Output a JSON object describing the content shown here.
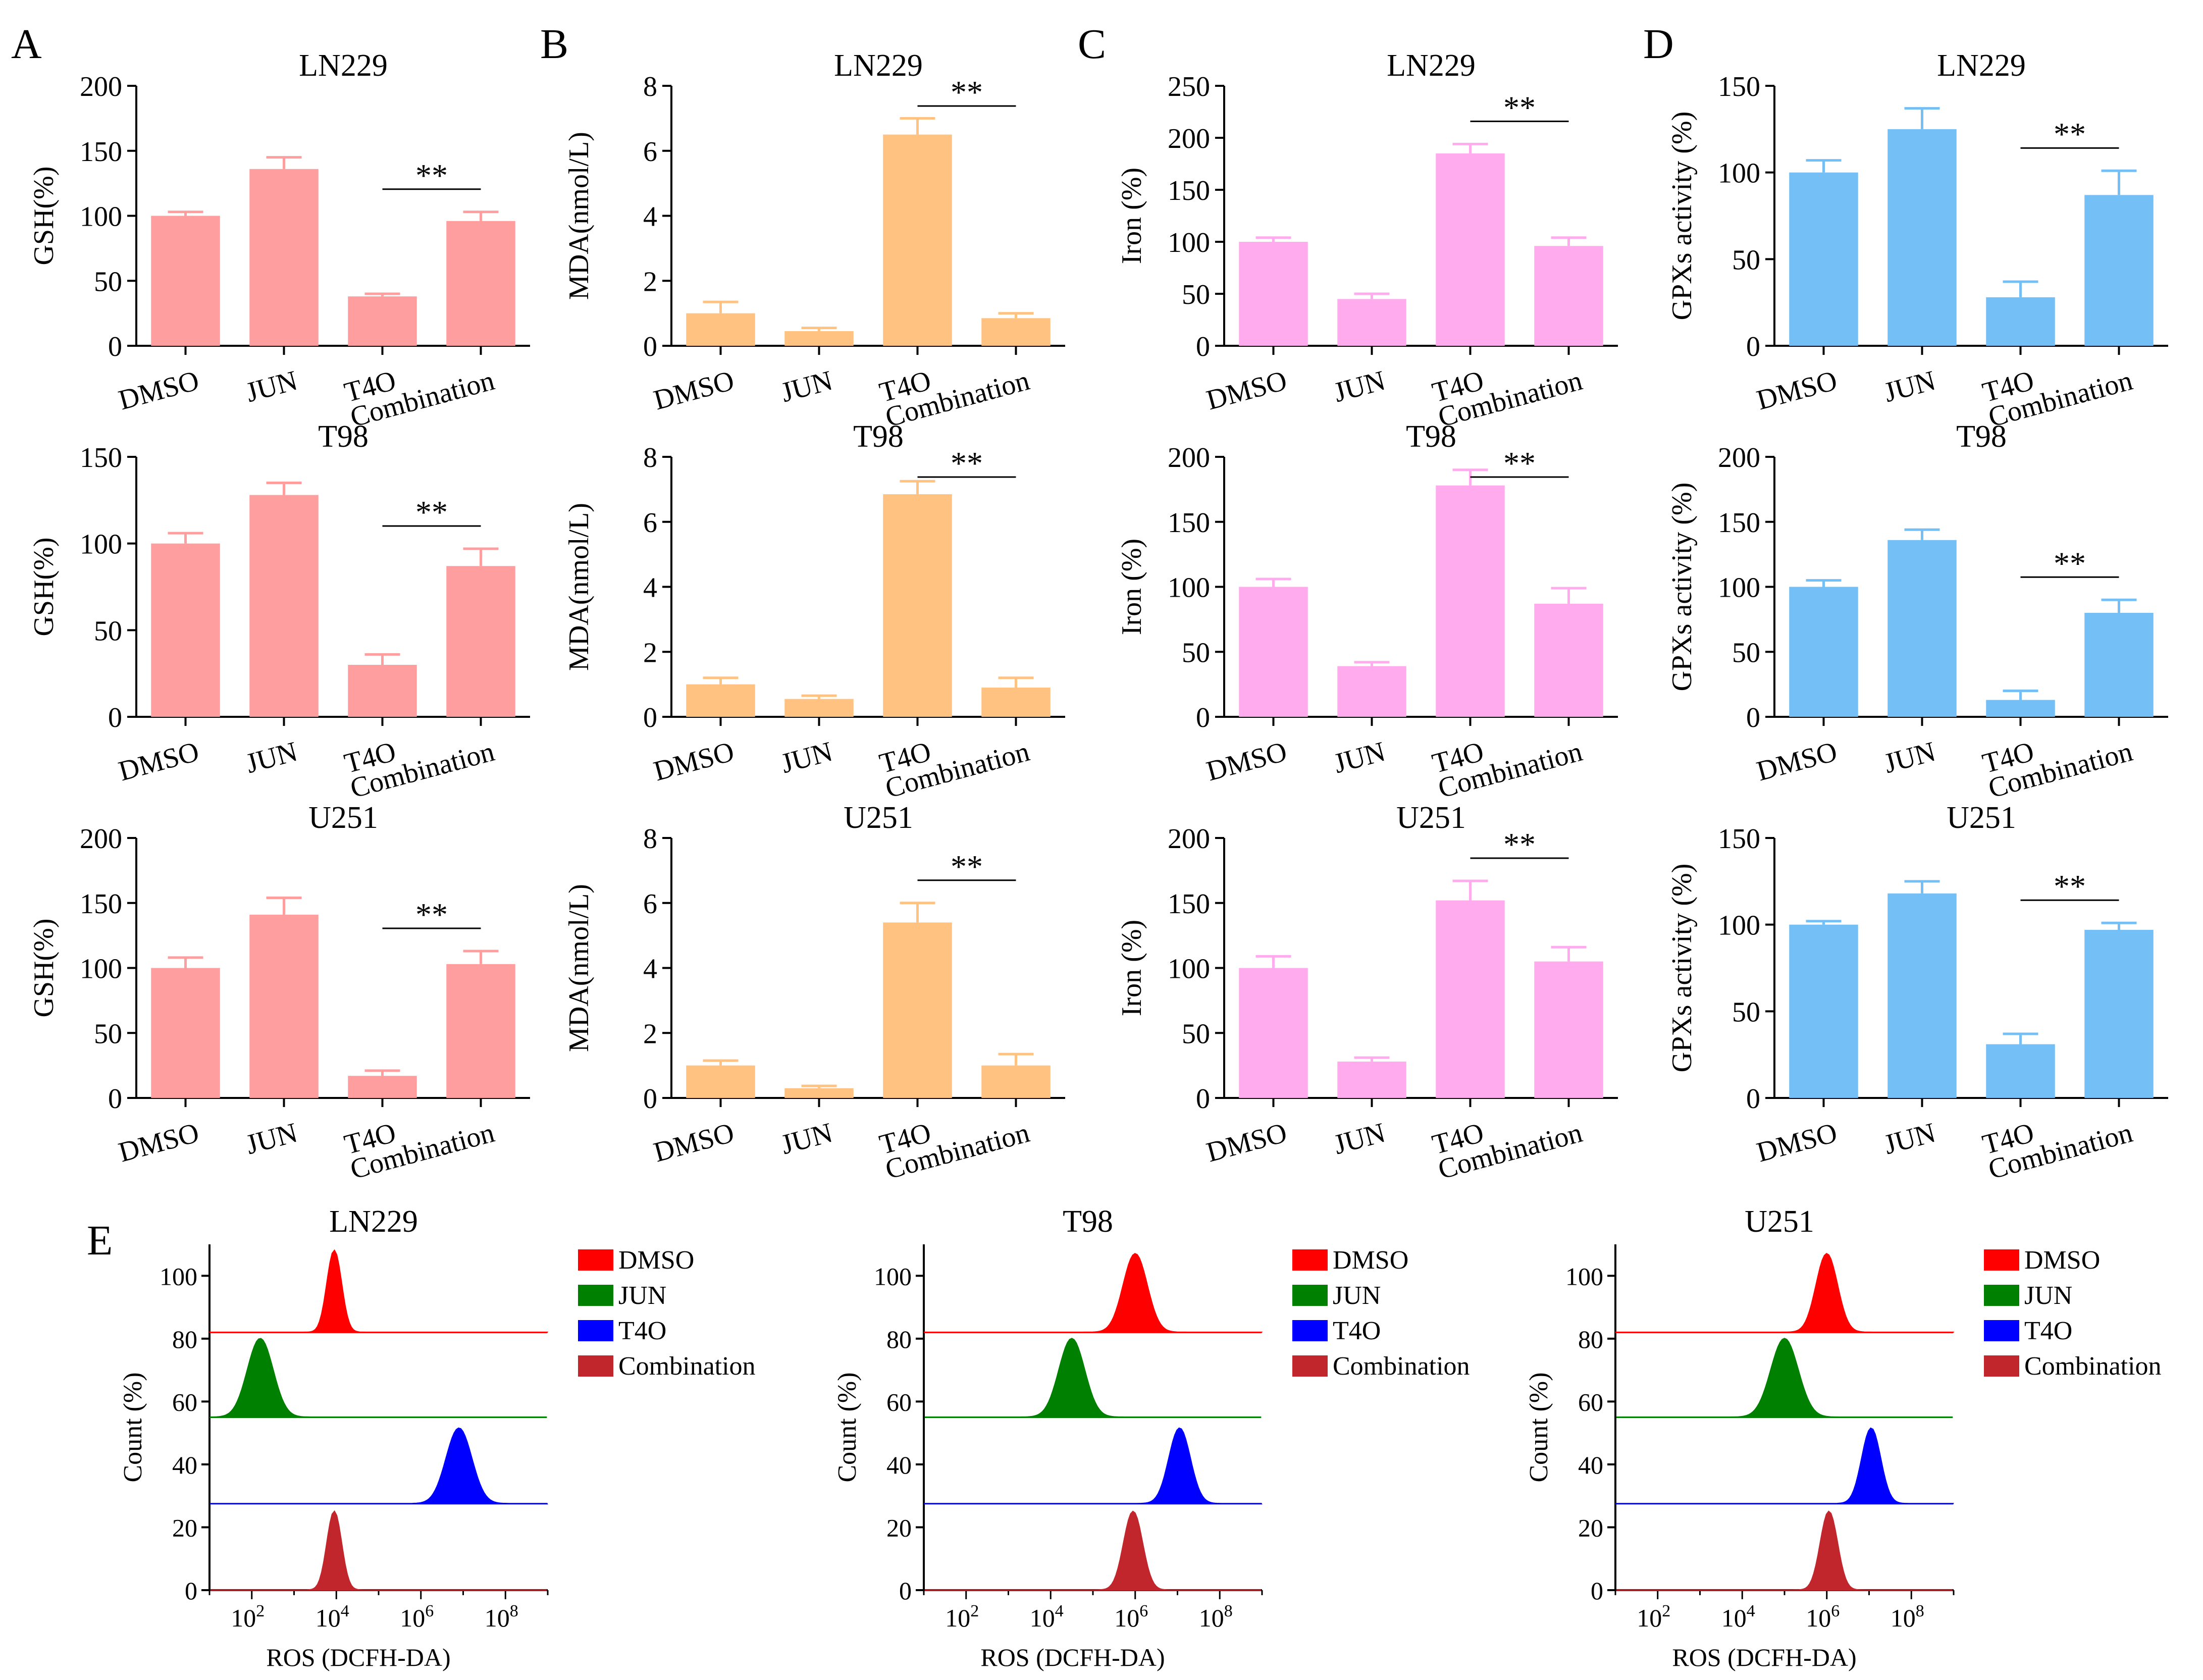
{
  "figure": {
    "groups": [
      "DMSO",
      "JUN",
      "T4O",
      "Combination"
    ],
    "significance": "**",
    "cell_lines": [
      "LN229",
      "T98",
      "U251"
    ]
  },
  "chart_data": [
    {
      "panel": "A",
      "type": "bar",
      "title": "LN229",
      "ylabel": "GSH(%)",
      "categories": [
        "DMSO",
        "JUN",
        "T4O",
        "Combination"
      ],
      "values": [
        100,
        136,
        38,
        96
      ],
      "errors": [
        3,
        9,
        2,
        7
      ],
      "ylim": [
        0,
        200
      ],
      "yticks": [
        0,
        50,
        100,
        150,
        200
      ],
      "significance": {
        "label": "**",
        "from": "T4O",
        "to": "Combination"
      },
      "color": "#FF9E9E"
    },
    {
      "panel": "A",
      "type": "bar",
      "title": "T98",
      "ylabel": "GSH(%)",
      "categories": [
        "DMSO",
        "JUN",
        "T4O",
        "Combination"
      ],
      "values": [
        100,
        128,
        30,
        87
      ],
      "errors": [
        6,
        7,
        6,
        10
      ],
      "ylim": [
        0,
        150
      ],
      "yticks": [
        0,
        50,
        100,
        150
      ],
      "significance": {
        "label": "**",
        "from": "T4O",
        "to": "Combination"
      },
      "color": "#FF9E9E"
    },
    {
      "panel": "A",
      "type": "bar",
      "title": "U251",
      "ylabel": "GSH(%)",
      "categories": [
        "DMSO",
        "JUN",
        "T4O",
        "Combination"
      ],
      "values": [
        100,
        141,
        17,
        103
      ],
      "errors": [
        8,
        13,
        4,
        10
      ],
      "ylim": [
        0,
        200
      ],
      "yticks": [
        0,
        50,
        100,
        150,
        200
      ],
      "significance": {
        "label": "**",
        "from": "T4O",
        "to": "Combination"
      },
      "color": "#FF9E9E"
    },
    {
      "panel": "B",
      "type": "bar",
      "title": "LN229",
      "ylabel": "MDA(nmol/L)",
      "categories": [
        "DMSO",
        "JUN",
        "T4O",
        "Combination"
      ],
      "values": [
        1.0,
        0.45,
        6.5,
        0.85
      ],
      "errors": [
        0.35,
        0.1,
        0.5,
        0.15
      ],
      "ylim": [
        0,
        8
      ],
      "yticks": [
        0,
        2,
        4,
        6,
        8
      ],
      "significance": {
        "label": "**",
        "from": "T4O",
        "to": "Combination"
      },
      "color": "#FFC280"
    },
    {
      "panel": "B",
      "type": "bar",
      "title": "T98",
      "ylabel": "MDA(nmol/L)",
      "categories": [
        "DMSO",
        "JUN",
        "T4O",
        "Combination"
      ],
      "values": [
        1.0,
        0.55,
        6.85,
        0.9
      ],
      "errors": [
        0.2,
        0.1,
        0.4,
        0.3
      ],
      "ylim": [
        0,
        8
      ],
      "yticks": [
        0,
        2,
        4,
        6,
        8
      ],
      "significance": {
        "label": "**",
        "from": "T4O",
        "to": "Combination"
      },
      "color": "#FFC280"
    },
    {
      "panel": "B",
      "type": "bar",
      "title": "U251",
      "ylabel": "MDA(nmol/L)",
      "categories": [
        "DMSO",
        "JUN",
        "T4O",
        "Combination"
      ],
      "values": [
        1.0,
        0.3,
        5.4,
        1.0
      ],
      "errors": [
        0.15,
        0.07,
        0.6,
        0.35
      ],
      "ylim": [
        0,
        8
      ],
      "yticks": [
        0,
        2,
        4,
        6,
        8
      ],
      "significance": {
        "label": "**",
        "from": "T4O",
        "to": "Combination"
      },
      "color": "#FFC280"
    },
    {
      "panel": "C",
      "type": "bar",
      "title": "LN229",
      "ylabel": "Iron (%)",
      "categories": [
        "DMSO",
        "JUN",
        "T4O",
        "Combination"
      ],
      "values": [
        100,
        45,
        185,
        96
      ],
      "errors": [
        4,
        5,
        9,
        8
      ],
      "ylim": [
        0,
        250
      ],
      "yticks": [
        0,
        50,
        100,
        150,
        200,
        250
      ],
      "significance": {
        "label": "**",
        "from": "T4O",
        "to": "Combination"
      },
      "color": "#FFABEE"
    },
    {
      "panel": "C",
      "type": "bar",
      "title": "T98",
      "ylabel": "Iron (%)",
      "categories": [
        "DMSO",
        "JUN",
        "T4O",
        "Combination"
      ],
      "values": [
        100,
        39,
        178,
        87
      ],
      "errors": [
        6,
        3,
        12,
        12
      ],
      "ylim": [
        0,
        200
      ],
      "yticks": [
        0,
        50,
        100,
        150,
        200
      ],
      "significance": {
        "label": "**",
        "from": "T4O",
        "to": "Combination"
      },
      "color": "#FFABEE"
    },
    {
      "panel": "C",
      "type": "bar",
      "title": "U251",
      "ylabel": "Iron (%)",
      "categories": [
        "DMSO",
        "JUN",
        "T4O",
        "Combination"
      ],
      "values": [
        100,
        28,
        152,
        105
      ],
      "errors": [
        9,
        3,
        15,
        11
      ],
      "ylim": [
        0,
        200
      ],
      "yticks": [
        0,
        50,
        100,
        150,
        200
      ],
      "significance": {
        "label": "**",
        "from": "T4O",
        "to": "Combination"
      },
      "color": "#FFABEE"
    },
    {
      "panel": "D",
      "type": "bar",
      "title": "LN229",
      "ylabel": "GPXs activity (%)",
      "categories": [
        "DMSO",
        "JUN",
        "T4O",
        "Combination"
      ],
      "values": [
        100,
        125,
        28,
        87
      ],
      "errors": [
        7,
        12,
        9,
        14
      ],
      "ylim": [
        0,
        150
      ],
      "yticks": [
        0,
        50,
        100,
        150
      ],
      "significance": {
        "label": "**",
        "from": "T4O",
        "to": "Combination"
      },
      "color": "#75BFF7"
    },
    {
      "panel": "D",
      "type": "bar",
      "title": "T98",
      "ylabel": "GPXs activity (%)",
      "categories": [
        "DMSO",
        "JUN",
        "T4O",
        "Combination"
      ],
      "values": [
        100,
        136,
        13,
        80
      ],
      "errors": [
        5,
        8,
        7,
        10
      ],
      "ylim": [
        0,
        200
      ],
      "yticks": [
        0,
        50,
        100,
        150,
        200
      ],
      "significance": {
        "label": "**",
        "from": "T4O",
        "to": "Combination"
      },
      "color": "#75BFF7"
    },
    {
      "panel": "D",
      "type": "bar",
      "title": "U251",
      "ylabel": "GPXs activity (%)",
      "categories": [
        "DMSO",
        "JUN",
        "T4O",
        "Combination"
      ],
      "values": [
        100,
        118,
        31,
        97
      ],
      "errors": [
        2,
        7,
        6,
        4
      ],
      "ylim": [
        0,
        150
      ],
      "yticks": [
        0,
        50,
        100,
        150
      ],
      "significance": {
        "label": "**",
        "from": "T4O",
        "to": "Combination"
      },
      "color": "#75BFF7"
    },
    {
      "panel": "E",
      "type": "histogram",
      "title": "LN229",
      "xlabel": "ROS (DCFH-DA)",
      "ylabel": "Count (%)",
      "xscale": "log",
      "xlim": [
        10,
        1000000000
      ],
      "xticks_exp": [
        2,
        4,
        6,
        8
      ],
      "ylim": [
        0,
        110
      ],
      "yticks": [
        0,
        20,
        40,
        60,
        80,
        100
      ],
      "series": [
        {
          "name": "DMSO",
          "color": "#FF0000",
          "baseline": 82,
          "peak_log": 3.95,
          "peak_height": 26,
          "width_log": 0.17
        },
        {
          "name": "JUN",
          "color": "#008000",
          "baseline": 55,
          "peak_log": 2.2,
          "peak_height": 25,
          "width_log": 0.3
        },
        {
          "name": "T4O",
          "color": "#0000FF",
          "baseline": 27.5,
          "peak_log": 6.9,
          "peak_height": 24,
          "width_log": 0.3
        },
        {
          "name": "Combination",
          "color": "#C0262B",
          "baseline": 0,
          "peak_log": 3.95,
          "peak_height": 25,
          "width_log": 0.17
        }
      ]
    },
    {
      "panel": "E",
      "type": "histogram",
      "title": "T98",
      "xlabel": "ROS (DCFH-DA)",
      "ylabel": "Count (%)",
      "xscale": "log",
      "xlim": [
        10,
        1000000000
      ],
      "xticks_exp": [
        2,
        4,
        6,
        8
      ],
      "ylim": [
        0,
        110
      ],
      "yticks": [
        0,
        20,
        40,
        60,
        80,
        100
      ],
      "series": [
        {
          "name": "DMSO",
          "color": "#FF0000",
          "baseline": 82,
          "peak_log": 6.0,
          "peak_height": 25,
          "width_log": 0.28
        },
        {
          "name": "JUN",
          "color": "#008000",
          "baseline": 55,
          "peak_log": 4.5,
          "peak_height": 25,
          "width_log": 0.3
        },
        {
          "name": "T4O",
          "color": "#0000FF",
          "baseline": 27.5,
          "peak_log": 7.05,
          "peak_height": 24,
          "width_log": 0.25
        },
        {
          "name": "Combination",
          "color": "#C0262B",
          "baseline": 0,
          "peak_log": 5.95,
          "peak_height": 25,
          "width_log": 0.22
        }
      ]
    },
    {
      "panel": "E",
      "type": "histogram",
      "title": "U251",
      "xlabel": "ROS (DCFH-DA)",
      "ylabel": "Count (%)",
      "xscale": "log",
      "xlim": [
        10,
        1000000000
      ],
      "xticks_exp": [
        2,
        4,
        6,
        8
      ],
      "ylim": [
        0,
        110
      ],
      "yticks": [
        0,
        20,
        40,
        60,
        80,
        100
      ],
      "series": [
        {
          "name": "DMSO",
          "color": "#FF0000",
          "baseline": 82,
          "peak_log": 6.0,
          "peak_height": 25,
          "width_log": 0.25
        },
        {
          "name": "JUN",
          "color": "#008000",
          "baseline": 55,
          "peak_log": 5.0,
          "peak_height": 25,
          "width_log": 0.32
        },
        {
          "name": "T4O",
          "color": "#0000FF",
          "baseline": 27.5,
          "peak_log": 7.05,
          "peak_height": 24,
          "width_log": 0.22
        },
        {
          "name": "Combination",
          "color": "#C0262B",
          "baseline": 0,
          "peak_log": 6.05,
          "peak_height": 25,
          "width_log": 0.2
        }
      ]
    }
  ]
}
